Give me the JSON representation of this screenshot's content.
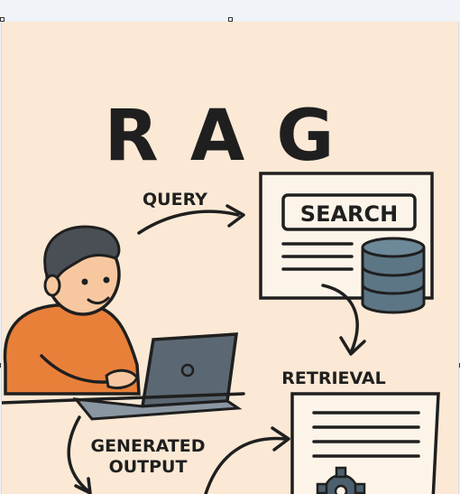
{
  "illustration": {
    "title": "R A G",
    "labels": {
      "query": "QUERY",
      "search": "SEARCH",
      "retrieval": "RETRIEVAL",
      "generated_line1": "GENERATED",
      "generated_line2": "OUTPUT"
    },
    "icons": {
      "person": "person-at-laptop",
      "laptop": "laptop-icon",
      "database": "database-icon",
      "document": "document-icon",
      "gear": "gear-icon"
    },
    "colors": {
      "background": "#fbe9d5",
      "ink": "#1f1f1f",
      "sweater": "#e9803a",
      "hair": "#4a4f55",
      "skin": "#f7c8a0",
      "laptop": "#5b6873",
      "database": "#5c7686"
    }
  }
}
